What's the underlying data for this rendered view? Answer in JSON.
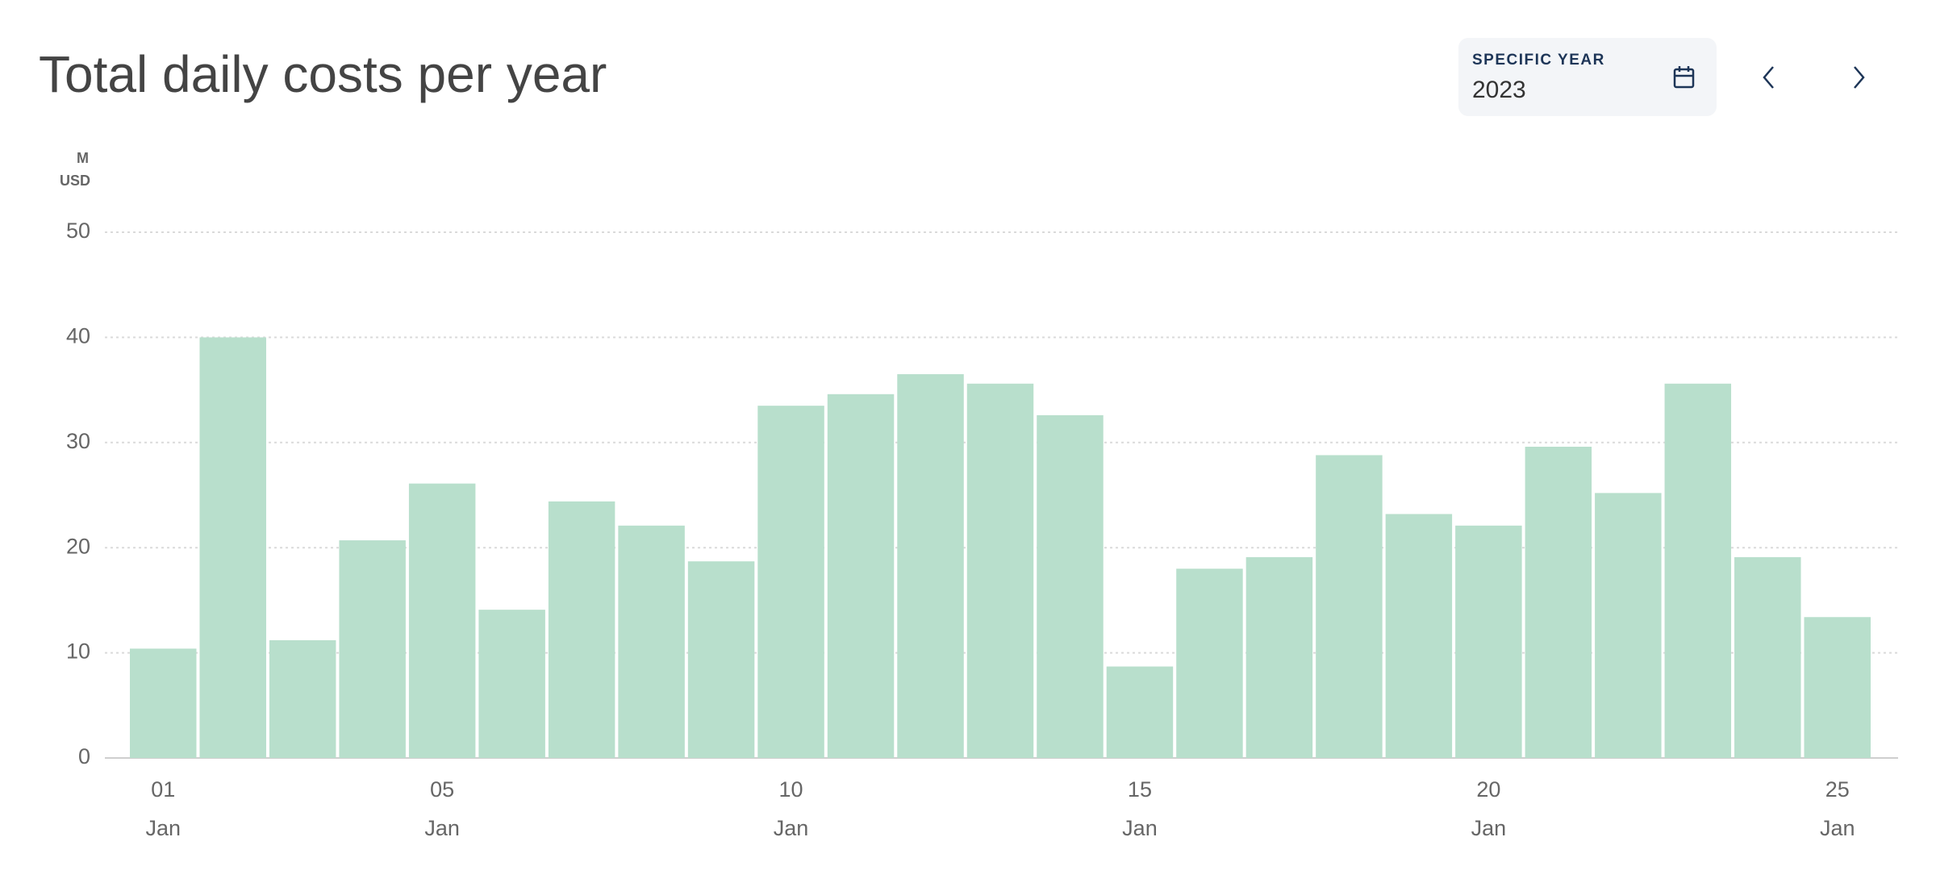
{
  "chart_data": {
    "type": "bar",
    "title": "Total daily costs per year",
    "y_unit": [
      "M",
      "USD"
    ],
    "year_picker": {
      "label": "SPECIFIC YEAR",
      "value": "2023"
    },
    "categories": [
      "01",
      null,
      null,
      null,
      "05",
      null,
      null,
      null,
      null,
      "10",
      null,
      null,
      null,
      null,
      "15",
      null,
      null,
      null,
      null,
      "20",
      null,
      null,
      null,
      null,
      "25"
    ],
    "category_sublabels": [
      "Jan",
      null,
      null,
      null,
      "Jan",
      null,
      null,
      null,
      null,
      "Jan",
      null,
      null,
      null,
      null,
      "Jan",
      null,
      null,
      null,
      null,
      "Jan",
      null,
      null,
      null,
      null,
      "Jan"
    ],
    "values": [
      10.4,
      40.0,
      11.2,
      20.7,
      26.1,
      14.1,
      24.4,
      22.1,
      18.7,
      33.5,
      34.6,
      36.5,
      35.6,
      32.6,
      8.7,
      18.0,
      19.1,
      28.8,
      23.2,
      22.1,
      29.6,
      25.2,
      35.6,
      19.1,
      13.4
    ],
    "color": "#b8dfcc",
    "ylim": [
      0,
      50
    ],
    "yticks": [
      0,
      10,
      20,
      30,
      40,
      50
    ],
    "grid": true
  }
}
